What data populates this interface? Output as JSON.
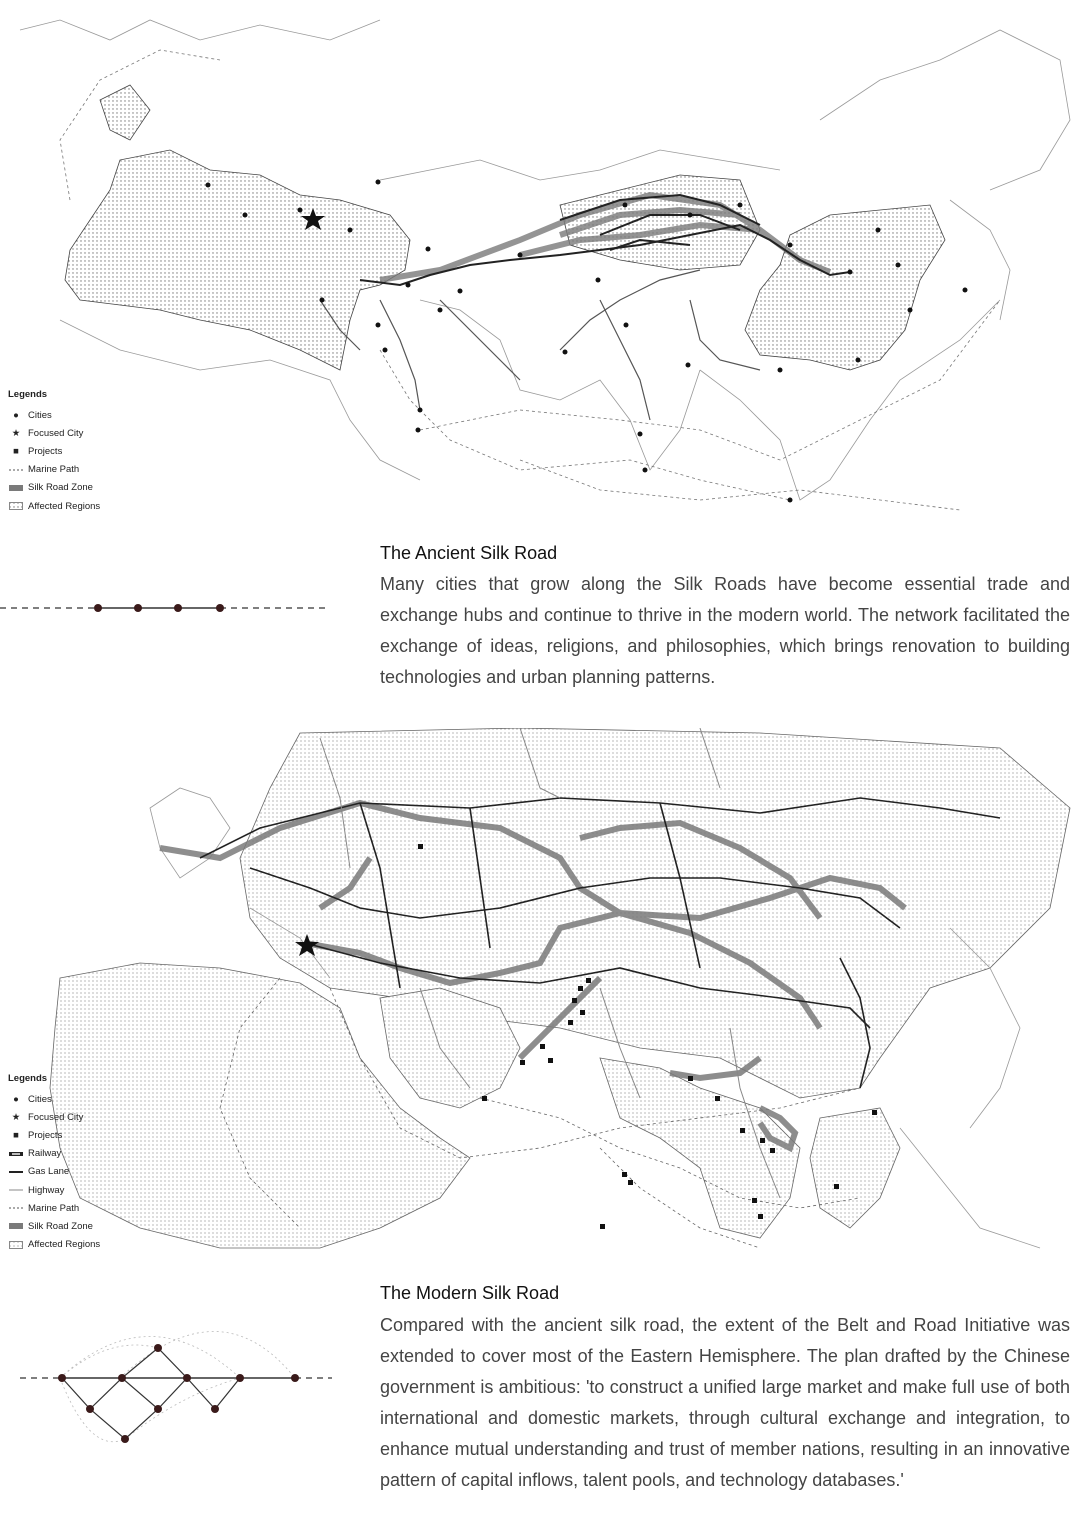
{
  "ancient": {
    "legend": {
      "title": "Legends",
      "items": [
        "Cities",
        "Focused City",
        "Projects",
        "Marine Path",
        "Silk Road Zone",
        "Affected Regions"
      ]
    },
    "title": "The Ancient Silk Road",
    "body": "Many cities that grow along the Silk Roads have become essential trade and exchange hubs and continue to thrive in the modern world. The network facilitated the exchange of ideas, religions, and philosophies, which brings renovation to building technologies and urban planning patterns."
  },
  "modern": {
    "legend": {
      "title": "Legends",
      "items": [
        "Cities",
        "Focused City",
        "Projects",
        "Railway",
        "Gas Lane",
        "Highway",
        "Marine Path",
        "Silk Road Zone",
        "Affected Regions"
      ]
    },
    "title": "The Modern Silk Road",
    "body": "Compared with the ancient silk road, the extent of the Belt and Road Initiative was extended to cover most of the Eastern Hemisphere. The plan drafted by the Chinese government is ambitious: 'to construct a unified large market and make full use of both international and domestic markets, through cultural exchange and integration, to enhance mutual understanding and trust of member nations, resulting in an innovative pattern of capital inflows, talent pools, and technology databases.'"
  },
  "colors": {
    "route_dark": "#222222",
    "zone_gray": "#7a7a7a",
    "coast": "#9a9a9a",
    "dot_fill": "#3a1a1a"
  }
}
